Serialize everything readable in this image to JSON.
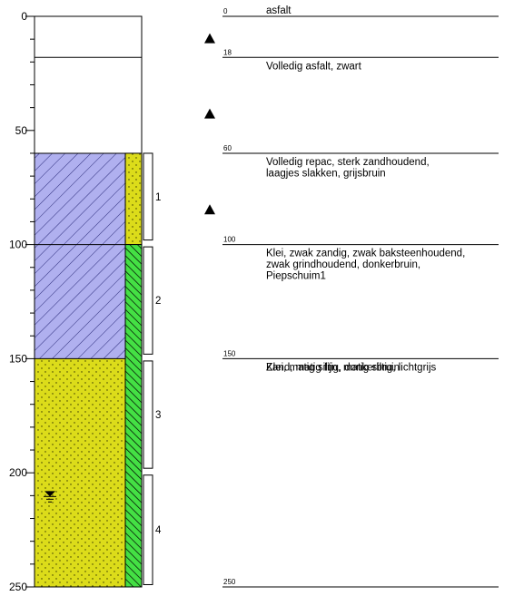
{
  "axis": {
    "min": 0,
    "max": 250,
    "labels": [
      "0",
      "50",
      "100",
      "150",
      "200",
      "250"
    ],
    "label_values": [
      0,
      50,
      100,
      150,
      200,
      250
    ],
    "minor_step": 10
  },
  "layers": [
    {
      "from": 0,
      "to": 18,
      "depth_label": "0",
      "fill": "empty",
      "lines": [
        "asfalt"
      ]
    },
    {
      "from": 18,
      "to": 60,
      "depth_label": "18",
      "fill": "empty",
      "lines": [
        "Volledig asfalt, zwart"
      ]
    },
    {
      "from": 60,
      "to": 100,
      "depth_label": "60",
      "fill": "clay",
      "lines": [
        "Volledig repac, sterk zandhoudend,",
        "laagjes slakken, grijsbruin"
      ]
    },
    {
      "from": 100,
      "to": 150,
      "depth_label": "100",
      "fill": "clay",
      "lines": [
        "Klei, zwak zandig, zwak baksteenhoudend,",
        "zwak grindhoudend, donkerbruin,",
        "Piepschuim1"
      ]
    },
    {
      "from": 150,
      "to": 250,
      "depth_label": "150",
      "fill": "sand",
      "lines": [
        "Klei, matig siltig, donkerbruin"
      ]
    }
  ],
  "bottom": {
    "depth": 250,
    "label": "250",
    "lines": [
      "Zand, matig fijn, matig siltig, lichtgrijs"
    ]
  },
  "admixtures": [
    {
      "from": 60,
      "to": 100,
      "fill": "sand"
    },
    {
      "from": 100,
      "to": 250,
      "fill": "green"
    }
  ],
  "samples": [
    {
      "from": 60,
      "to": 98,
      "label": "1"
    },
    {
      "from": 101,
      "to": 148,
      "label": "2"
    },
    {
      "from": 151,
      "to": 198,
      "label": "3"
    },
    {
      "from": 201,
      "to": 249,
      "label": "4"
    }
  ],
  "markers": [
    {
      "type": "triangle-up",
      "depth": 5
    },
    {
      "type": "triangle-up",
      "depth": 38
    },
    {
      "type": "triangle-up",
      "depth": 80
    }
  ],
  "groundwater": {
    "depth": 208
  },
  "colors": {
    "clay": "#b0b0ef",
    "clay_hatch": "#2a2a7a",
    "sand": "#dcdc1a",
    "sand_dot": "#333300",
    "green": "#44e044",
    "green_hatch": "#000000",
    "line": "#000000"
  }
}
